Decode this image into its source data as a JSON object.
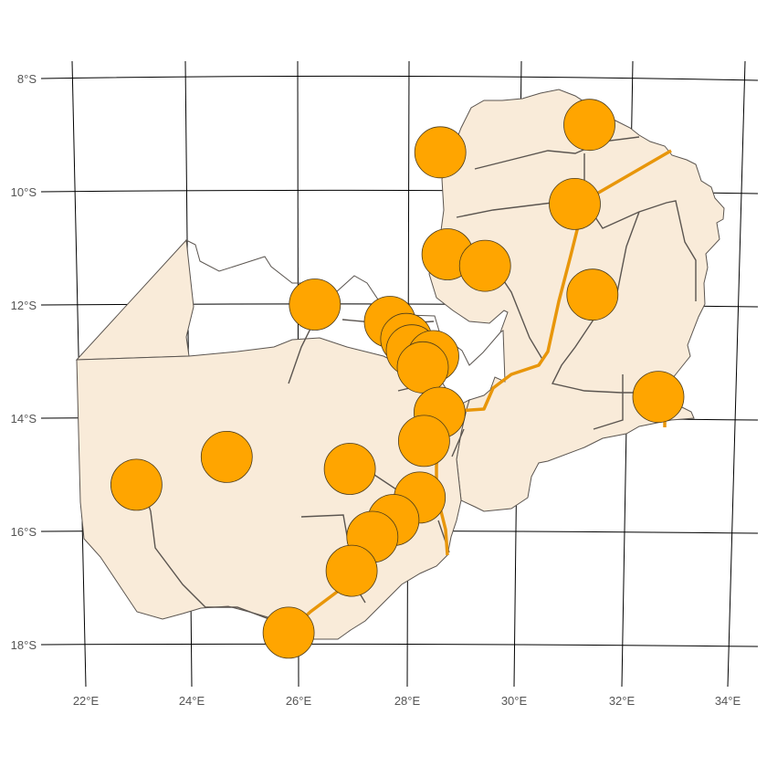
{
  "colors": {
    "land": "#f9ebd9",
    "border": "#5b5550",
    "river": "#5b5550",
    "rail": "#f0a000",
    "city": "#ffa500",
    "city_outline": "#4a3a1a",
    "grid": "#000000",
    "tick_text": "#555555"
  },
  "axes": {
    "lat_labels": [
      "8°S",
      "10°S",
      "12°S",
      "14°S",
      "16°S",
      "18°S"
    ],
    "lon_labels": [
      "22°E",
      "24°E",
      "26°E",
      "28°E",
      "30°E",
      "32°E",
      "34°E"
    ]
  },
  "points": [
    {
      "lon": 28.8,
      "lat": -9.3
    },
    {
      "lon": 31.6,
      "lat": -8.8
    },
    {
      "lon": 31.3,
      "lat": -10.2
    },
    {
      "lon": 28.9,
      "lat": -11.1
    },
    {
      "lon": 29.6,
      "lat": -11.3
    },
    {
      "lon": 31.6,
      "lat": -11.8
    },
    {
      "lon": 26.4,
      "lat": -12.0
    },
    {
      "lon": 27.8,
      "lat": -12.3
    },
    {
      "lon": 28.1,
      "lat": -12.6
    },
    {
      "lon": 28.2,
      "lat": -12.8
    },
    {
      "lon": 28.6,
      "lat": -12.9
    },
    {
      "lon": 28.4,
      "lat": -13.1
    },
    {
      "lon": 32.8,
      "lat": -13.6
    },
    {
      "lon": 28.7,
      "lat": -13.9
    },
    {
      "lon": 28.4,
      "lat": -14.4
    },
    {
      "lon": 24.7,
      "lat": -14.7
    },
    {
      "lon": 27.0,
      "lat": -14.9
    },
    {
      "lon": 23.0,
      "lat": -15.2
    },
    {
      "lon": 28.3,
      "lat": -15.4
    },
    {
      "lon": 27.8,
      "lat": -15.8
    },
    {
      "lon": 27.4,
      "lat": -16.1
    },
    {
      "lon": 27.0,
      "lat": -16.7
    },
    {
      "lon": 25.8,
      "lat": -17.8
    }
  ]
}
